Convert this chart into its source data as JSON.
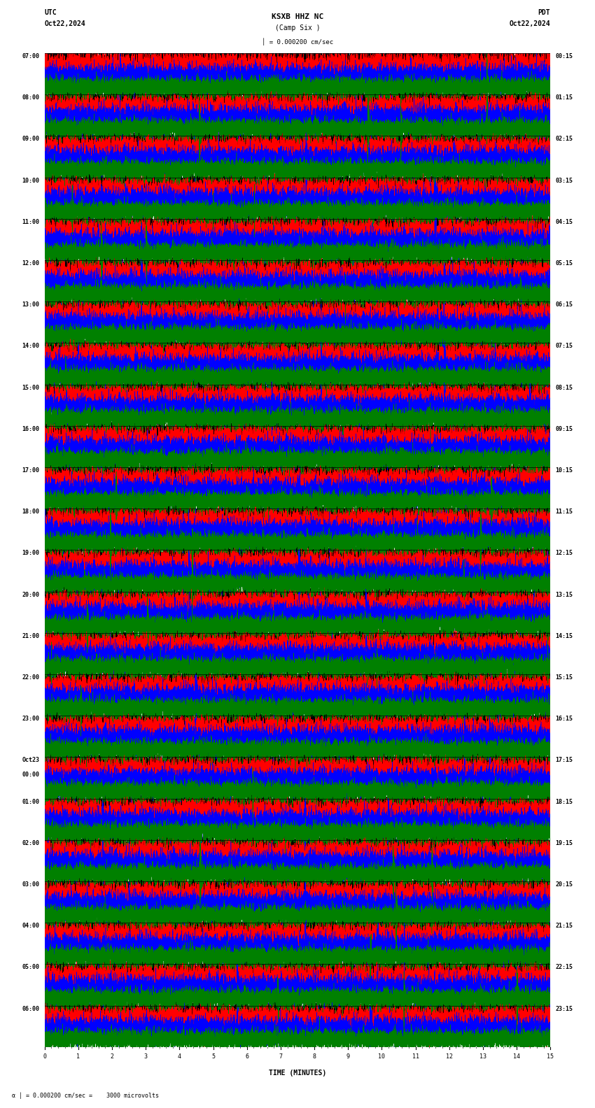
{
  "title_station": "KSXB HHZ NC",
  "title_location": "(Camp Six )",
  "scale_text": "= 0.000200 cm/sec",
  "utc_label": "UTC",
  "date_left": "Oct22,2024",
  "date_right": "Oct22,2024",
  "pdt_label": "PDT",
  "bottom_scale": "= 0.000200 cm/sec =    3000 microvolts",
  "xlabel": "TIME (MINUTES)",
  "time_labels_left": [
    "07:00",
    "08:00",
    "09:00",
    "10:00",
    "11:00",
    "12:00",
    "13:00",
    "14:00",
    "15:00",
    "16:00",
    "17:00",
    "18:00",
    "19:00",
    "20:00",
    "21:00",
    "22:00",
    "23:00",
    "Oct23\n00:00",
    "01:00",
    "02:00",
    "03:00",
    "04:00",
    "05:00",
    "06:00"
  ],
  "time_labels_right": [
    "00:15",
    "01:15",
    "02:15",
    "03:15",
    "04:15",
    "05:15",
    "06:15",
    "07:15",
    "08:15",
    "09:15",
    "10:15",
    "11:15",
    "12:15",
    "13:15",
    "14:15",
    "15:15",
    "16:15",
    "17:15",
    "18:15",
    "19:15",
    "20:15",
    "21:15",
    "22:15",
    "23:15"
  ],
  "colors": [
    "black",
    "red",
    "blue",
    "green"
  ],
  "bg_color": "white",
  "trace_lw": 0.35,
  "n_rows": 24,
  "n_channels": 4,
  "minutes": 15,
  "sample_rate": 50,
  "font_size": 6.5,
  "title_font_size": 8,
  "amp_scales": [
    1.0,
    1.5,
    1.2,
    0.9
  ]
}
